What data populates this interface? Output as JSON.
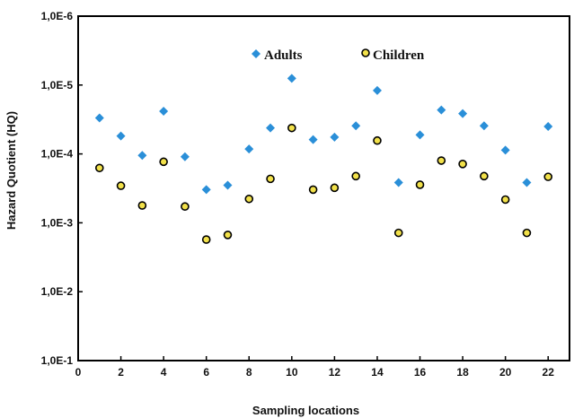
{
  "chart_data": {
    "type": "scatter",
    "title": "",
    "xlabel": "Sampling locations",
    "ylabel": "Hazard Quotient (HQ)",
    "y_scale": "log",
    "y_reversed": true,
    "xlim": [
      0,
      23
    ],
    "ylim": [
      1e-06,
      0.1
    ],
    "x_ticks": [
      0,
      2,
      4,
      6,
      8,
      10,
      12,
      14,
      16,
      18,
      20,
      22
    ],
    "y_ticks": [
      1e-06,
      1e-05,
      0.0001,
      0.001,
      0.01,
      0.1
    ],
    "y_tick_labels": [
      "1,0E-6",
      "1,0E-5",
      "1,0E-4",
      "1,0E-3",
      "1,0E-2",
      "1,0E-1"
    ],
    "grid": false,
    "legend_placement": "top-center",
    "x": [
      1,
      2,
      3,
      4,
      5,
      6,
      7,
      8,
      9,
      10,
      11,
      12,
      13,
      14,
      15,
      16,
      17,
      18,
      19,
      20,
      21,
      22
    ],
    "series": [
      {
        "name": "Adults",
        "marker": "diamond",
        "color": "#2a8fd8",
        "values": [
          3e-05,
          5.5e-05,
          0.000105,
          2.4e-05,
          0.00011,
          0.00033,
          0.000285,
          8.5e-05,
          4.2e-05,
          8e-06,
          6.2e-05,
          5.7e-05,
          3.9e-05,
          1.2e-05,
          0.00026,
          5.3e-05,
          2.3e-05,
          2.6e-05,
          3.9e-05,
          8.8e-05,
          0.00026,
          4e-05
        ]
      },
      {
        "name": "Children",
        "marker": "circle",
        "color": "#f2e14a",
        "values": [
          0.00016,
          0.00029,
          0.00056,
          0.00013,
          0.00058,
          0.00175,
          0.0015,
          0.00045,
          0.00023,
          4.2e-05,
          0.00033,
          0.00031,
          0.00021,
          6.4e-05,
          0.0014,
          0.00028,
          0.000125,
          0.00014,
          0.00021,
          0.00046,
          0.0014,
          0.000215
        ]
      }
    ]
  }
}
